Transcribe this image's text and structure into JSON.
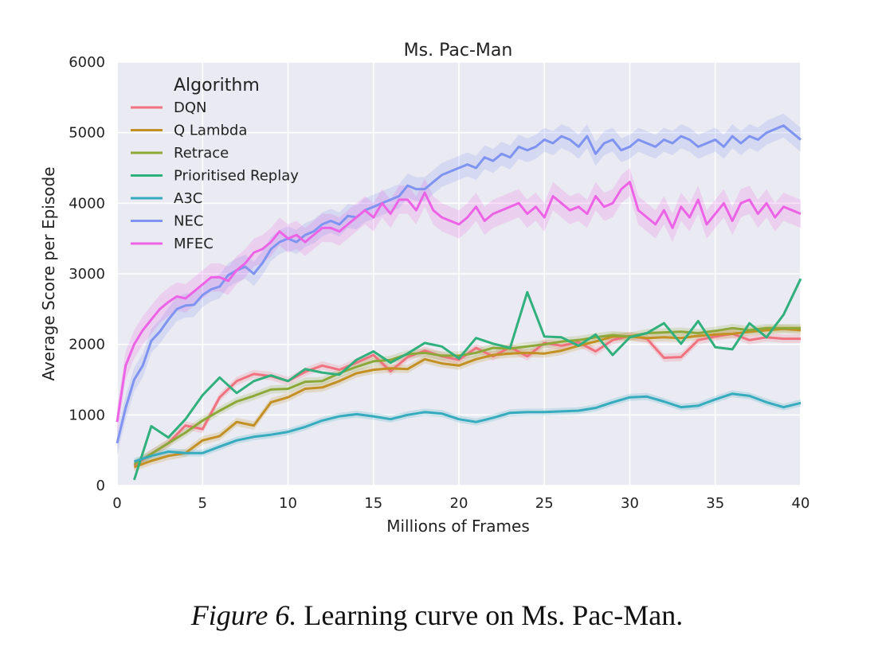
{
  "caption": {
    "label": "Figure 6.",
    "text": "Learning curve on Ms. Pac-Man."
  },
  "chart_data": {
    "type": "line",
    "title": "Ms. Pac-Man",
    "xlabel": "Millions of Frames",
    "ylabel": "Average Score per Episode",
    "xlim": [
      0,
      40
    ],
    "ylim": [
      0,
      6000
    ],
    "xticks": [
      0,
      5,
      10,
      15,
      20,
      25,
      30,
      35,
      40
    ],
    "yticks": [
      0,
      1000,
      2000,
      3000,
      4000,
      5000,
      6000
    ],
    "grid": true,
    "background": "#eaeaf2",
    "legend": {
      "title": "Algorithm",
      "placement": "top-left"
    },
    "series": [
      {
        "name": "DQN",
        "color": "#f0727f",
        "band": 60,
        "x": [
          1,
          2,
          3,
          4,
          5,
          6,
          7,
          8,
          9,
          10,
          11,
          12,
          13,
          14,
          15,
          16,
          17,
          18,
          19,
          20,
          21,
          22,
          23,
          24,
          25,
          26,
          27,
          28,
          29,
          30,
          31,
          32,
          33,
          34,
          35,
          36,
          37,
          38,
          39,
          40
        ],
        "y": [
          280,
          450,
          600,
          850,
          800,
          1250,
          1480,
          1580,
          1550,
          1480,
          1610,
          1700,
          1640,
          1740,
          1850,
          1620,
          1820,
          1910,
          1830,
          1780,
          1950,
          1830,
          1960,
          1830,
          2020,
          1980,
          2030,
          1900,
          2060,
          2120,
          2080,
          1810,
          1820,
          2060,
          2110,
          2150,
          2060,
          2100,
          2080,
          2080
        ]
      },
      {
        "name": "Q Lambda",
        "color": "#c29023",
        "band": 60,
        "x": [
          1,
          2,
          3,
          4,
          5,
          6,
          7,
          8,
          9,
          10,
          11,
          12,
          13,
          14,
          15,
          16,
          17,
          18,
          19,
          20,
          21,
          22,
          23,
          24,
          25,
          26,
          27,
          28,
          29,
          30,
          31,
          32,
          33,
          34,
          35,
          36,
          37,
          38,
          39,
          40
        ],
        "y": [
          260,
          350,
          420,
          460,
          640,
          700,
          900,
          850,
          1180,
          1250,
          1370,
          1390,
          1480,
          1590,
          1640,
          1660,
          1650,
          1790,
          1730,
          1700,
          1790,
          1850,
          1870,
          1880,
          1870,
          1910,
          1980,
          2040,
          2110,
          2110,
          2090,
          2100,
          2090,
          2120,
          2140,
          2150,
          2180,
          2200,
          2220,
          2200
        ]
      },
      {
        "name": "Retrace",
        "color": "#8da838",
        "band": 60,
        "x": [
          1,
          2,
          3,
          4,
          5,
          6,
          7,
          8,
          9,
          10,
          11,
          12,
          13,
          14,
          15,
          16,
          17,
          18,
          19,
          20,
          21,
          22,
          23,
          24,
          25,
          26,
          27,
          28,
          29,
          30,
          31,
          32,
          33,
          34,
          35,
          36,
          37,
          38,
          39,
          40
        ],
        "y": [
          300,
          450,
          600,
          750,
          920,
          1060,
          1190,
          1270,
          1360,
          1370,
          1470,
          1480,
          1590,
          1680,
          1760,
          1780,
          1860,
          1880,
          1840,
          1840,
          1880,
          1950,
          1940,
          1970,
          2000,
          2040,
          2060,
          2100,
          2130,
          2110,
          2160,
          2170,
          2180,
          2160,
          2190,
          2230,
          2200,
          2230,
          2230,
          2230
        ]
      },
      {
        "name": "Prioritised Replay",
        "color": "#2fb07d",
        "band": 0,
        "x": [
          1,
          2,
          3,
          4,
          5,
          6,
          7,
          8,
          9,
          10,
          11,
          12,
          13,
          14,
          15,
          16,
          17,
          18,
          19,
          20,
          21,
          22,
          23,
          24,
          25,
          26,
          27,
          28,
          29,
          30,
          31,
          32,
          33,
          34,
          35,
          36,
          37,
          38,
          39,
          40
        ],
        "y": [
          80,
          840,
          680,
          940,
          1280,
          1530,
          1310,
          1480,
          1560,
          1480,
          1650,
          1600,
          1570,
          1780,
          1900,
          1740,
          1870,
          2020,
          1970,
          1800,
          2090,
          2010,
          1950,
          2740,
          2110,
          2100,
          1980,
          2140,
          1850,
          2100,
          2160,
          2300,
          2010,
          2330,
          1960,
          1930,
          2300,
          2100,
          2420,
          2930
        ]
      },
      {
        "name": "A3C",
        "color": "#36abbe",
        "band": 50,
        "x": [
          1,
          2,
          3,
          4,
          5,
          6,
          7,
          8,
          9,
          10,
          11,
          12,
          13,
          14,
          15,
          16,
          17,
          18,
          19,
          20,
          21,
          22,
          23,
          24,
          25,
          26,
          27,
          28,
          29,
          30,
          31,
          32,
          33,
          34,
          35,
          36,
          37,
          38,
          39,
          40
        ],
        "y": [
          340,
          420,
          480,
          460,
          460,
          550,
          640,
          690,
          720,
          760,
          830,
          920,
          980,
          1010,
          980,
          940,
          1000,
          1040,
          1020,
          940,
          900,
          960,
          1030,
          1040,
          1040,
          1050,
          1060,
          1100,
          1180,
          1250,
          1260,
          1190,
          1110,
          1130,
          1220,
          1300,
          1270,
          1180,
          1110,
          1170
        ]
      },
      {
        "name": "NEC",
        "color": "#7f93f0",
        "band": 170,
        "x": [
          0,
          0.5,
          1,
          1.5,
          2,
          2.5,
          3,
          3.5,
          4,
          4.5,
          5,
          5.5,
          6,
          6.5,
          7,
          7.5,
          8,
          8.5,
          9,
          9.5,
          10,
          10.5,
          11,
          11.5,
          12,
          12.5,
          13,
          13.5,
          14,
          14.5,
          15,
          15.5,
          16,
          16.5,
          17,
          17.5,
          18,
          18.5,
          19,
          19.5,
          20,
          20.5,
          21,
          21.5,
          22,
          22.5,
          23,
          23.5,
          24,
          24.5,
          25,
          25.5,
          26,
          26.5,
          27,
          27.5,
          28,
          28.5,
          29,
          29.5,
          30,
          30.5,
          31,
          31.5,
          32,
          32.5,
          33,
          33.5,
          34,
          34.5,
          35,
          35.5,
          36,
          36.5,
          37,
          37.5,
          38,
          38.5,
          39,
          39.5,
          40
        ],
        "y": [
          600,
          1100,
          1500,
          1700,
          2050,
          2180,
          2350,
          2500,
          2550,
          2560,
          2700,
          2780,
          2820,
          2980,
          3050,
          3100,
          3000,
          3150,
          3350,
          3450,
          3500,
          3450,
          3550,
          3600,
          3700,
          3750,
          3700,
          3820,
          3800,
          3900,
          3950,
          4000,
          4050,
          4100,
          4250,
          4200,
          4200,
          4300,
          4400,
          4450,
          4500,
          4550,
          4500,
          4650,
          4600,
          4700,
          4650,
          4800,
          4750,
          4800,
          4900,
          4850,
          4950,
          4900,
          4800,
          4950,
          4700,
          4850,
          4900,
          4750,
          4800,
          4900,
          4850,
          4800,
          4900,
          4850,
          4950,
          4900,
          4800,
          4850,
          4900,
          4800,
          4950,
          4850,
          4950,
          4900,
          5000,
          5050,
          5100,
          5000,
          4900
        ]
      },
      {
        "name": "MFEC",
        "color": "#ed63e6",
        "band": 200,
        "x": [
          0,
          0.5,
          1,
          1.5,
          2,
          2.5,
          3,
          3.5,
          4,
          4.5,
          5,
          5.5,
          6,
          6.5,
          7,
          7.5,
          8,
          8.5,
          9,
          9.5,
          10,
          10.5,
          11,
          11.5,
          12,
          12.5,
          13,
          13.5,
          14,
          14.5,
          15,
          15.5,
          16,
          16.5,
          17,
          17.5,
          18,
          18.5,
          19,
          19.5,
          20,
          20.5,
          21,
          21.5,
          22,
          22.5,
          23,
          23.5,
          24,
          24.5,
          25,
          25.5,
          26,
          26.5,
          27,
          27.5,
          28,
          28.5,
          29,
          29.5,
          30,
          30.5,
          31,
          31.5,
          32,
          32.5,
          33,
          33.5,
          34,
          34.5,
          35,
          35.5,
          36,
          36.5,
          37,
          37.5,
          38,
          38.5,
          39,
          39.5,
          40
        ],
        "y": [
          900,
          1700,
          2000,
          2200,
          2350,
          2500,
          2600,
          2680,
          2650,
          2750,
          2850,
          2950,
          2950,
          2900,
          3050,
          3150,
          3300,
          3350,
          3450,
          3600,
          3500,
          3550,
          3450,
          3550,
          3650,
          3650,
          3600,
          3700,
          3800,
          3900,
          3800,
          4000,
          3850,
          4050,
          4050,
          3900,
          4150,
          3900,
          3800,
          3750,
          3700,
          3800,
          3950,
          3750,
          3850,
          3900,
          3950,
          4000,
          3850,
          3950,
          3800,
          4100,
          4000,
          3900,
          3950,
          3850,
          4100,
          3950,
          4000,
          4200,
          4300,
          3900,
          3800,
          3700,
          3900,
          3650,
          3950,
          3800,
          4050,
          3700,
          3850,
          4000,
          3750,
          4000,
          4050,
          3850,
          4000,
          3800,
          3950,
          3900,
          3850
        ]
      }
    ]
  }
}
